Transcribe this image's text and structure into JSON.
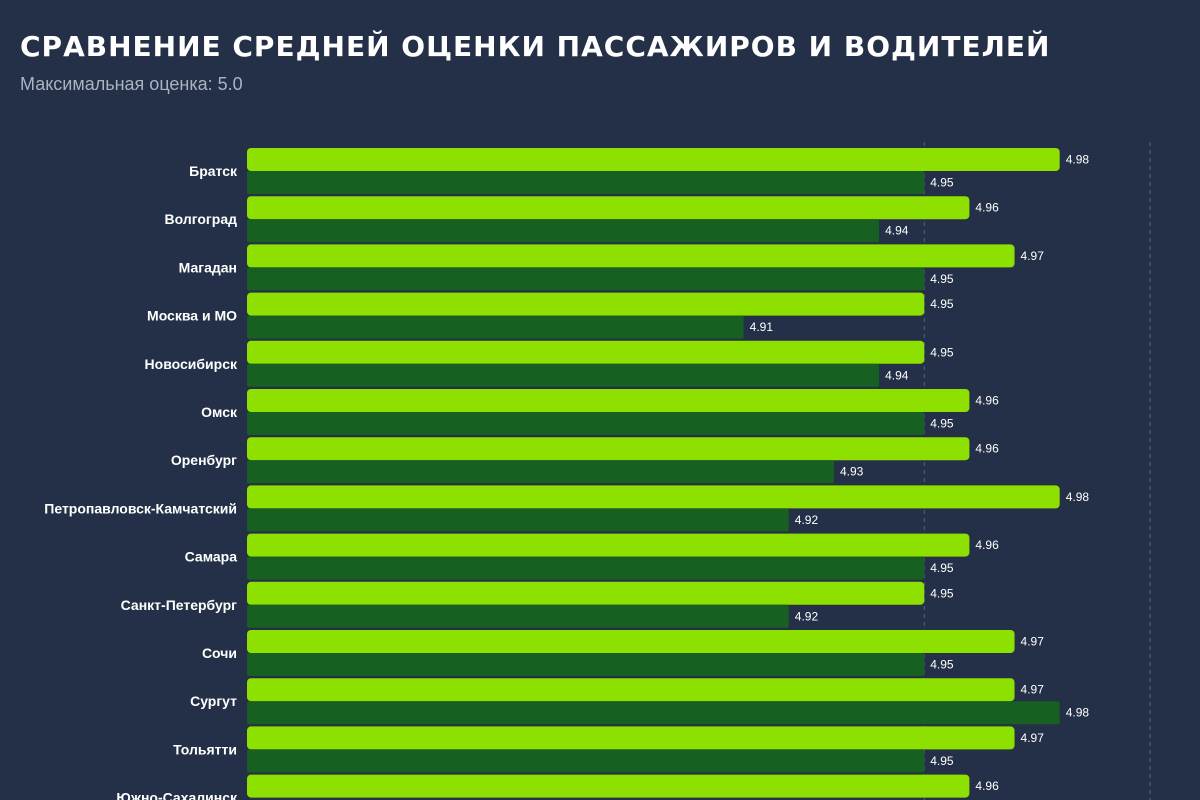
{
  "header": {
    "title": "СРАВНЕНИЕ СРЕДНЕЙ ОЦЕНКИ ПАССАЖИРОВ И ВОДИТЕЛЕЙ",
    "subtitle": "Максимальная оценка: 5.0"
  },
  "colors": {
    "background": "#243047",
    "series_1": "#8ee000",
    "series_2": "#185f22",
    "label_bg": "#1e2a3c",
    "grid": "#55627a"
  },
  "chart_data": {
    "type": "bar",
    "orientation": "horizontal",
    "title": "СРАВНЕНИЕ СРЕДНЕЙ ОЦЕНКИ ПАССАЖИРОВ И ВОДИТЕЛЕЙ",
    "subtitle": "Максимальная оценка: 5.0",
    "categories": [
      "Братск",
      "Волгоград",
      "Магадан",
      "Москва и МО",
      "Новосибирск",
      "Омск",
      "Оренбург",
      "Петропавловск-Камчатский",
      "Самара",
      "Санкт-Петербург",
      "Сочи",
      "Сургут",
      "Тольятти",
      "Южно-Сахалинск"
    ],
    "series": [
      {
        "values": [
          4.98,
          4.96,
          4.97,
          4.95,
          4.95,
          4.96,
          4.96,
          4.98,
          4.96,
          4.95,
          4.97,
          4.97,
          4.97,
          4.96
        ]
      },
      {
        "values": [
          4.95,
          4.94,
          4.95,
          4.91,
          4.94,
          4.95,
          4.93,
          4.92,
          4.95,
          4.92,
          4.95,
          4.98,
          4.95,
          null
        ]
      }
    ],
    "xlim": [
      4.8,
      5.0
    ],
    "grid": true,
    "legend": false
  }
}
